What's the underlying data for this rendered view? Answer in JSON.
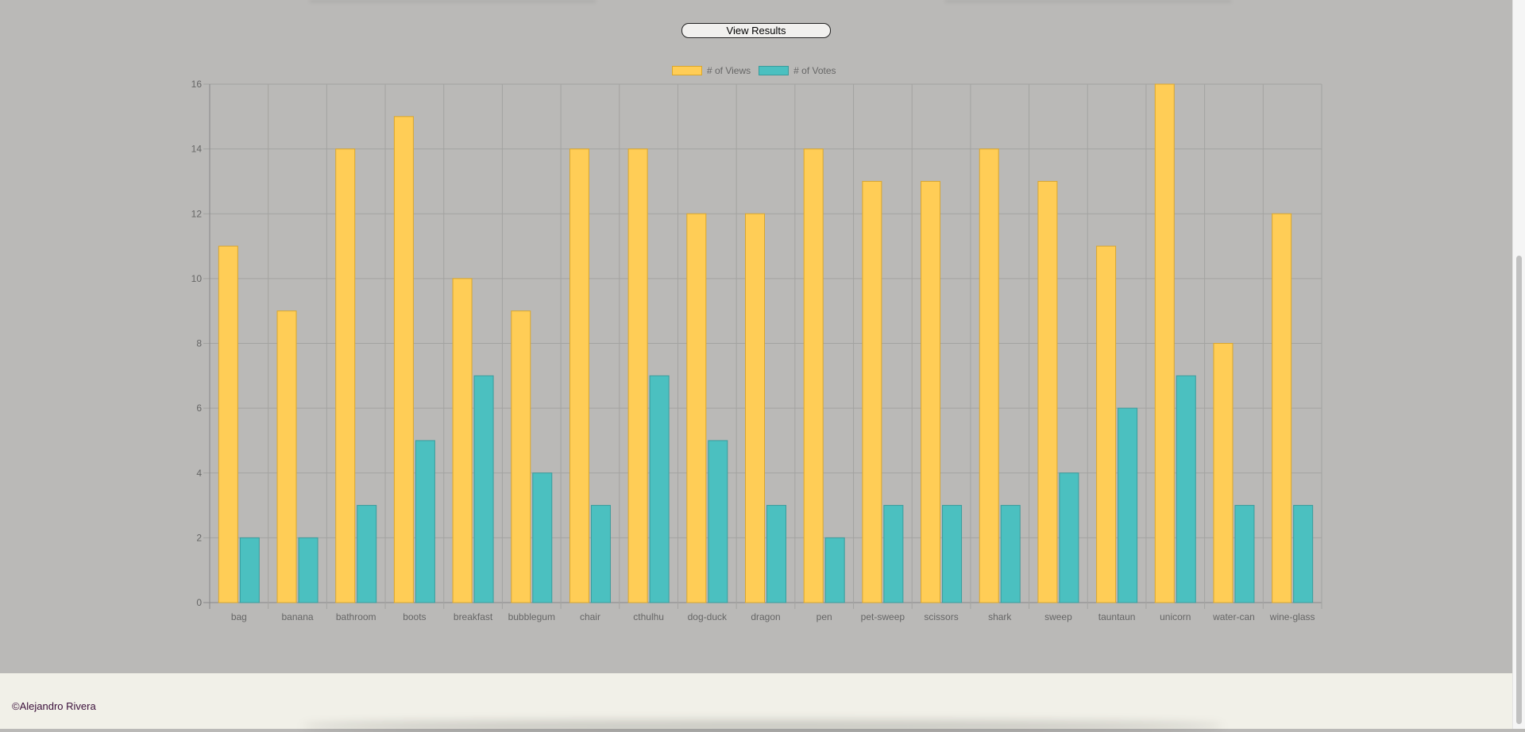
{
  "button": {
    "label": "View Results"
  },
  "footer": {
    "text": "©Alejandro Rivera"
  },
  "colors": {
    "background": "#bab9b7",
    "views_fill": "#ffcd56",
    "views_border": "#d9a62e",
    "votes_fill": "#4bc0c0",
    "votes_border": "#3a9c9c",
    "footer_bg": "#f1f0e8"
  },
  "chart_data": {
    "type": "bar",
    "title": "",
    "xlabel": "",
    "ylabel": "",
    "ylim": [
      0,
      16
    ],
    "yticks": [
      0,
      2,
      4,
      6,
      8,
      10,
      12,
      14,
      16
    ],
    "grid": true,
    "legend_position": "top-center",
    "categories": [
      "bag",
      "banana",
      "bathroom",
      "boots",
      "breakfast",
      "bubblegum",
      "chair",
      "cthulhu",
      "dog-duck",
      "dragon",
      "pen",
      "pet-sweep",
      "scissors",
      "shark",
      "sweep",
      "tauntaun",
      "unicorn",
      "water-can",
      "wine-glass"
    ],
    "series": [
      {
        "name": "# of Views",
        "values": [
          11,
          9,
          14,
          15,
          10,
          9,
          14,
          14,
          12,
          12,
          14,
          13,
          13,
          14,
          13,
          11,
          16,
          8,
          12
        ]
      },
      {
        "name": "# of Votes",
        "values": [
          2,
          2,
          3,
          5,
          7,
          4,
          3,
          7,
          5,
          3,
          2,
          3,
          3,
          3,
          4,
          6,
          7,
          3,
          3
        ]
      }
    ]
  }
}
